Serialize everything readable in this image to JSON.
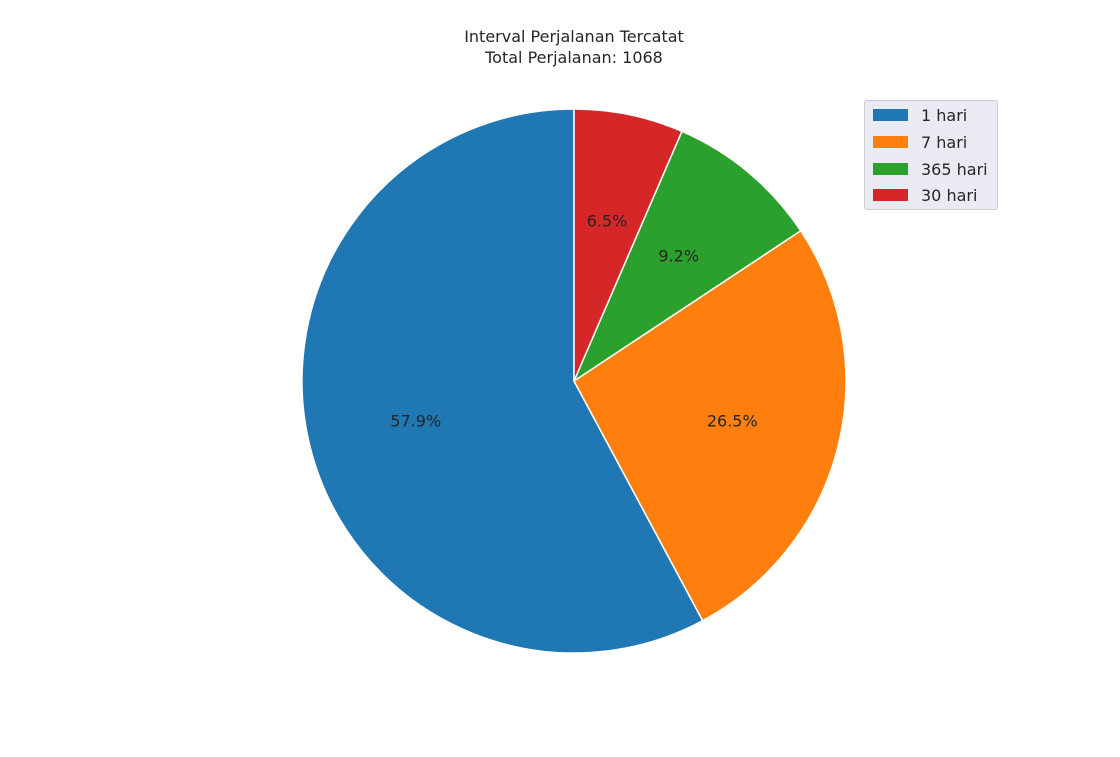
{
  "chart_data": {
    "type": "pie",
    "title": "Interval Perjalanan Tercatat",
    "subtitle": "Total Perjalanan: 1068",
    "slices": [
      {
        "label": "1 hari",
        "percent": 57.9,
        "percent_label": "57.9%",
        "color": "#1f77b4"
      },
      {
        "label": "7 hari",
        "percent": 26.5,
        "percent_label": "26.5%",
        "color": "#ff7f0e"
      },
      {
        "label": "365 hari",
        "percent": 9.2,
        "percent_label": "9.2%",
        "color": "#2ca02c"
      },
      {
        "label": "30 hari",
        "percent": 6.5,
        "percent_label": "6.5%",
        "color": "#d62728"
      }
    ],
    "start_angle": "top",
    "direction": "counterclockwise",
    "legend_position": "top-right"
  }
}
